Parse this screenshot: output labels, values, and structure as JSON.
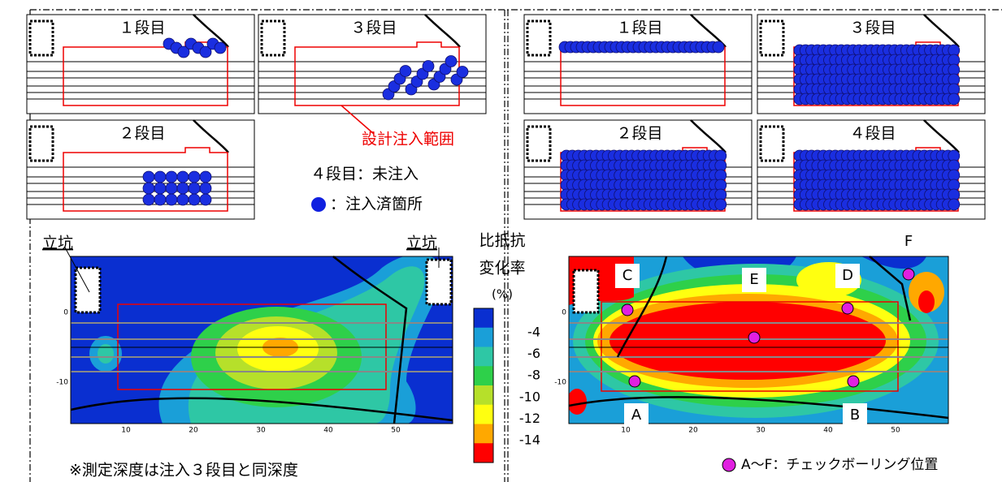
{
  "left": {
    "panels": [
      "１段目",
      "３段目",
      "２段目"
    ],
    "design_range": "設計注入範囲",
    "stage4_note": "４段目：未注入",
    "injected_legend": "：注入済箇所"
  },
  "right": {
    "panels": [
      "１段目",
      "３段目",
      "２段目",
      "４段目"
    ]
  },
  "shaft_labels": [
    "立坑",
    "立坑"
  ],
  "colorbar": {
    "title": [
      "比抵抗",
      "変化率",
      "(%)"
    ],
    "ticks": [
      "-4",
      "-6",
      "-8",
      "-10",
      "-12",
      "-14"
    ]
  },
  "left_map": {
    "xticks": [
      "10",
      "20",
      "30",
      "40",
      "50"
    ],
    "yticks": [
      "0",
      "-10"
    ]
  },
  "note": "※測定深度は注入３段目と同深度",
  "right_map": {
    "xticks": [
      "10",
      "20",
      "30",
      "40",
      "50"
    ],
    "yticks": [
      "0",
      "-10"
    ],
    "points": [
      "A",
      "B",
      "C",
      "D",
      "E",
      "F"
    ]
  },
  "point_legend": "A～F：チェックボーリング位置"
}
